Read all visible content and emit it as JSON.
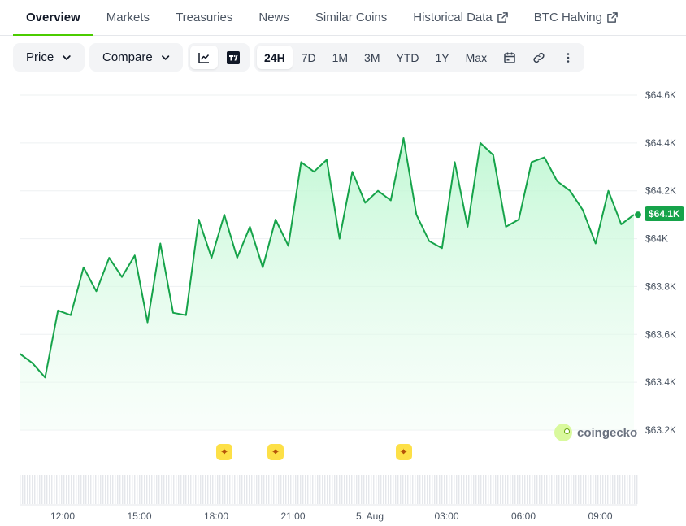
{
  "tabs": [
    {
      "label": "Overview",
      "active": true
    },
    {
      "label": "Markets"
    },
    {
      "label": "Treasuries"
    },
    {
      "label": "News"
    },
    {
      "label": "Similar Coins"
    },
    {
      "label": "Historical Data",
      "external": true
    },
    {
      "label": "BTC Halving",
      "external": true
    }
  ],
  "toolbar": {
    "price_label": "Price",
    "compare_label": "Compare",
    "ranges": [
      "24H",
      "7D",
      "1M",
      "3M",
      "YTD",
      "1Y",
      "Max"
    ],
    "selected_range": "24H"
  },
  "current_price": "$64.1K",
  "watermark": "coingecko",
  "colors": {
    "line": "#16a34a",
    "accent": "#4bcc00",
    "fill": "#dcfce7"
  },
  "chart_data": {
    "type": "area",
    "y_ticks": [
      "$64.6K",
      "$64.4K",
      "$64.2K",
      "$64K",
      "$63.8K",
      "$63.6K",
      "$63.4K",
      "$63.2K"
    ],
    "x_ticks": [
      "12:00",
      "15:00",
      "18:00",
      "21:00",
      "5. Aug",
      "03:00",
      "06:00",
      "09:00"
    ],
    "ylim": [
      63200,
      64600
    ],
    "x_hours": [
      0,
      0.5,
      1,
      1.5,
      2,
      2.5,
      3,
      3.5,
      4,
      4.5,
      5,
      5.5,
      6,
      6.5,
      7,
      7.5,
      8,
      8.5,
      9,
      9.5,
      10,
      10.5,
      11,
      11.5,
      12,
      12.5,
      13,
      13.5,
      14,
      14.5,
      15,
      15.5,
      16,
      16.5,
      17,
      17.5,
      18,
      18.5,
      19,
      19.5,
      20,
      20.5,
      21,
      21.5,
      22,
      22.5,
      23,
      23.5,
      24
    ],
    "x_start_hour": 10.6,
    "values": [
      63520,
      63480,
      63420,
      63700,
      63680,
      63880,
      63780,
      63920,
      63840,
      63930,
      63650,
      63980,
      63690,
      63680,
      64080,
      63920,
      64100,
      63920,
      64050,
      63880,
      64080,
      63970,
      64320,
      64280,
      64330,
      64000,
      64280,
      64150,
      64200,
      64160,
      64420,
      64100,
      63990,
      63960,
      64320,
      64050,
      64400,
      64350,
      64050,
      64080,
      64320,
      64340,
      64240,
      64200,
      64120,
      63980,
      64200,
      64060,
      64100
    ],
    "events_at_hours": [
      8.0,
      10.0,
      15.0
    ],
    "grid": true
  }
}
